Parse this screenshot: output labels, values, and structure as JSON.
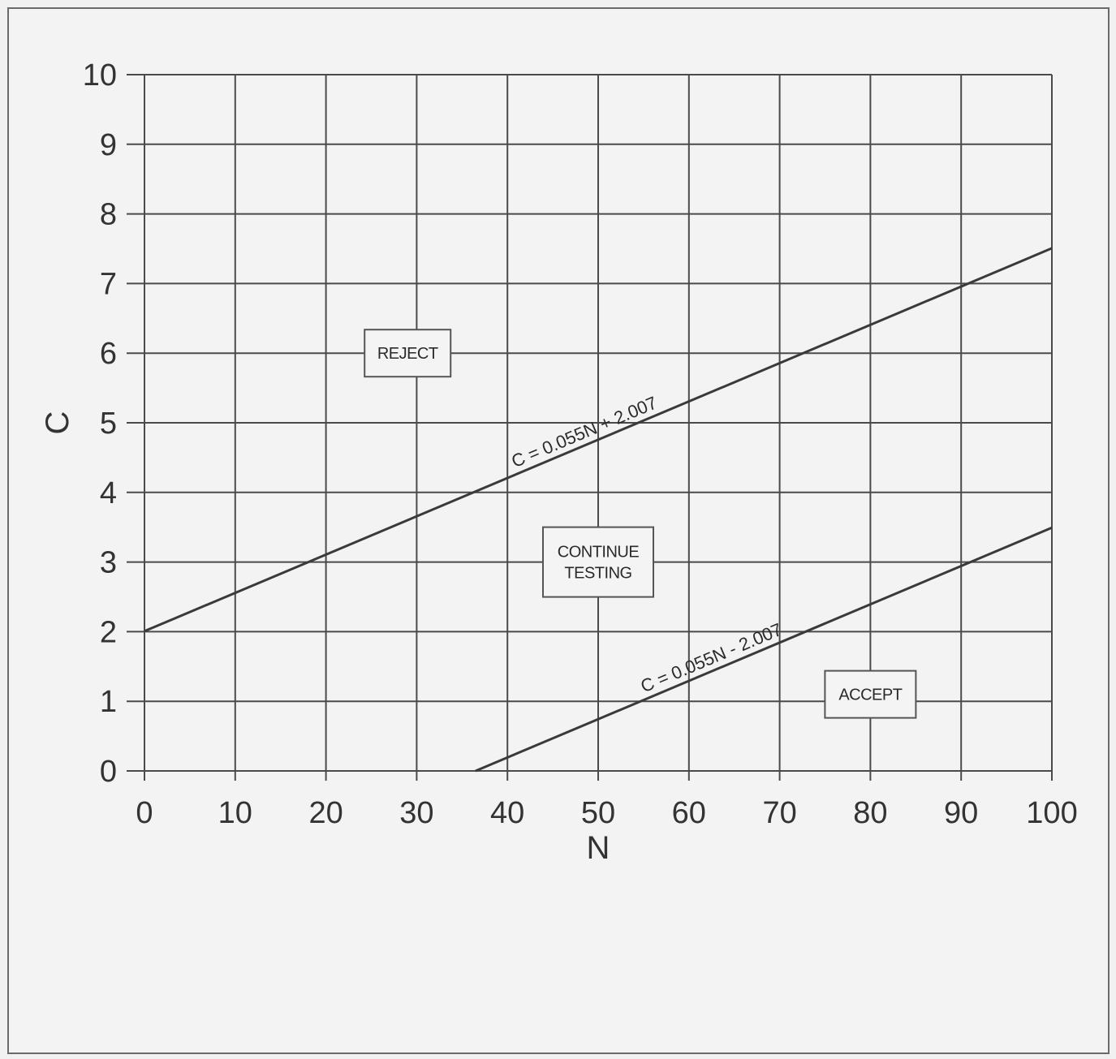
{
  "chart_data": {
    "type": "line",
    "xlabel": "N",
    "ylabel": "C",
    "xlim": [
      0,
      100
    ],
    "ylim": [
      0,
      10
    ],
    "xticks": [
      "0",
      "10",
      "20",
      "30",
      "40",
      "50",
      "60",
      "70",
      "80",
      "90",
      "100"
    ],
    "yticks": [
      "0",
      "1",
      "2",
      "3",
      "4",
      "5",
      "6",
      "7",
      "8",
      "9",
      "10"
    ],
    "grid": true,
    "series": [
      {
        "name": "C = 0.055N + 2.007",
        "x": [
          0,
          100
        ],
        "y": [
          2.007,
          7.507
        ]
      },
      {
        "name": "C = 0.055N - 2.007",
        "x": [
          36.49,
          100
        ],
        "y": [
          0,
          3.493
        ]
      }
    ],
    "regions": [
      {
        "lines": [
          "REJECT"
        ],
        "x": 29,
        "y": 6
      },
      {
        "lines": [
          "CONTINUE",
          "TESTING"
        ],
        "x": 50,
        "y": 3
      },
      {
        "lines": [
          "ACCEPT"
        ],
        "x": 80,
        "y": 1.1
      }
    ]
  },
  "colors": {
    "grid": "#4a4a4a",
    "line": "#3a3a3a",
    "background": "#f3f3f3"
  }
}
